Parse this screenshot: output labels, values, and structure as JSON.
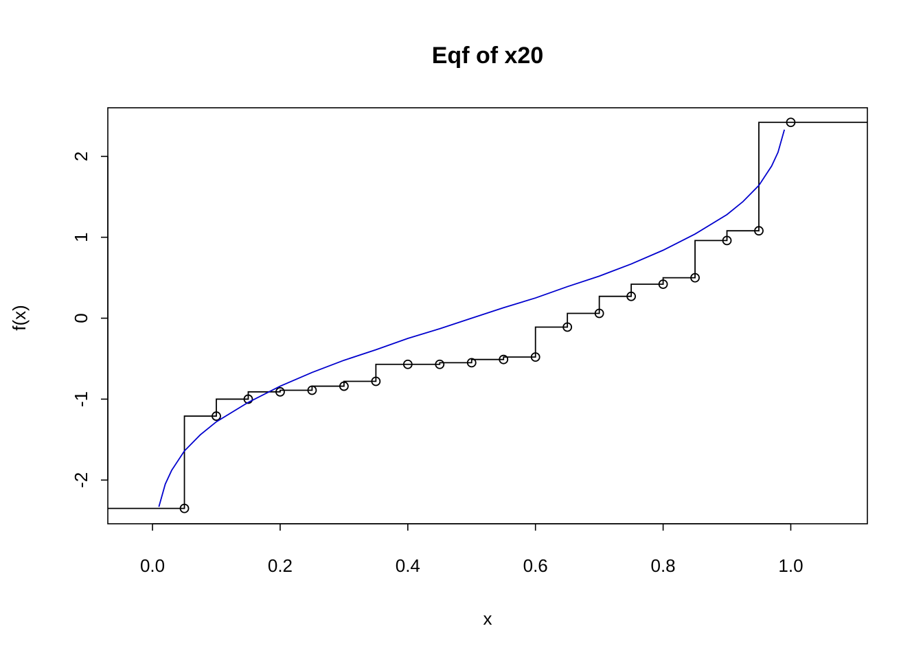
{
  "chart_data": {
    "type": "line",
    "title": "Eqf of x20",
    "xlabel": "x",
    "ylabel": "f(x)",
    "xlim": [
      -0.07,
      1.12
    ],
    "ylim": [
      -2.54,
      2.6
    ],
    "xticks": [
      0.0,
      0.2,
      0.4,
      0.6,
      0.8,
      1.0
    ],
    "xtick_labels": [
      "0.0",
      "0.2",
      "0.4",
      "0.6",
      "0.8",
      "1.0"
    ],
    "yticks": [
      -2,
      -1,
      0,
      1,
      2
    ],
    "ytick_labels": [
      "-2",
      "-1",
      "0",
      "1",
      "2"
    ],
    "grid": false,
    "legend": "none",
    "series": [
      {
        "kind": "step",
        "color": "#000000",
        "x": [
          0.05,
          0.1,
          0.15,
          0.2,
          0.25,
          0.3,
          0.35,
          0.4,
          0.45,
          0.5,
          0.55,
          0.6,
          0.65,
          0.7,
          0.75,
          0.8,
          0.85,
          0.9,
          0.95,
          1.0
        ],
        "y": [
          -2.35,
          -1.21,
          -1.0,
          -0.91,
          -0.89,
          -0.84,
          -0.78,
          -0.57,
          -0.57,
          -0.55,
          -0.51,
          -0.48,
          -0.11,
          0.06,
          0.27,
          0.42,
          0.5,
          0.96,
          1.08,
          2.42
        ]
      },
      {
        "kind": "curve",
        "color": "#0000cd",
        "x": [
          0.01,
          0.02,
          0.03,
          0.05,
          0.075,
          0.1,
          0.15,
          0.2,
          0.25,
          0.3,
          0.35,
          0.4,
          0.45,
          0.5,
          0.55,
          0.6,
          0.65,
          0.7,
          0.75,
          0.8,
          0.85,
          0.9,
          0.925,
          0.95,
          0.97,
          0.98,
          0.99
        ],
        "y": [
          -2.33,
          -2.05,
          -1.88,
          -1.64,
          -1.44,
          -1.28,
          -1.04,
          -0.84,
          -0.67,
          -0.52,
          -0.39,
          -0.25,
          -0.13,
          0.0,
          0.13,
          0.25,
          0.39,
          0.52,
          0.67,
          0.84,
          1.04,
          1.28,
          1.44,
          1.64,
          1.88,
          2.05,
          2.33
        ]
      }
    ]
  }
}
